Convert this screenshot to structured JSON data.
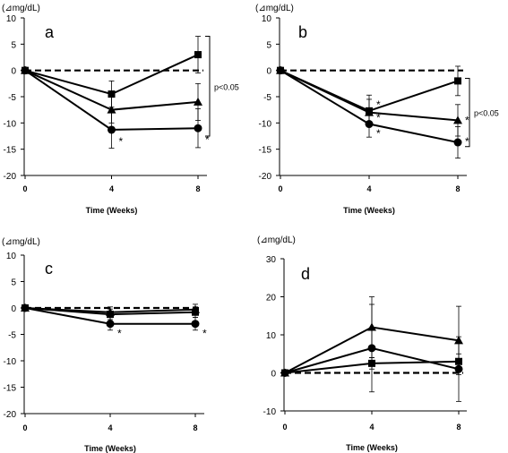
{
  "chart_data": [
    {
      "type": "line",
      "panel_label": "a",
      "y_unit": "(⊿mg/dL)",
      "xlabel": "Time (Weeks)",
      "x": [
        0,
        4,
        8
      ],
      "ylim": [
        -20,
        10
      ],
      "yticks": [
        -20,
        -15,
        -10,
        -5,
        0,
        5,
        10
      ],
      "series": [
        {
          "marker": "square",
          "values": [
            0,
            -4.5,
            3.0
          ],
          "errors": [
            0,
            2.5,
            3.5
          ]
        },
        {
          "marker": "triangle",
          "values": [
            0,
            -7.5,
            -6.0
          ],
          "errors": [
            0,
            2.5,
            3.5
          ]
        },
        {
          "marker": "circle",
          "values": [
            0,
            -11.3,
            -11.0
          ],
          "errors": [
            0,
            3.5,
            3.7
          ]
        }
      ],
      "baseline": 0,
      "annotations": [
        {
          "text": "*",
          "x": 4,
          "y": -13.5
        },
        {
          "text": "*",
          "x": 8,
          "y": -13.2
        }
      ],
      "bracket": {
        "text": "p<0.05",
        "from": 6.5,
        "to": -12.5
      }
    },
    {
      "type": "line",
      "panel_label": "b",
      "y_unit": "(⊿mg/dL)",
      "xlabel": "Time (Weeks)",
      "x": [
        0,
        4,
        8
      ],
      "ylim": [
        -20,
        10
      ],
      "yticks": [
        -20,
        -15,
        -10,
        -5,
        0,
        5,
        10
      ],
      "series": [
        {
          "marker": "square",
          "values": [
            0,
            -7.7,
            -2.0
          ],
          "errors": [
            0,
            3.0,
            2.8
          ]
        },
        {
          "marker": "triangle",
          "values": [
            0,
            -8.0,
            -9.5
          ],
          "errors": [
            0,
            2.5,
            3.0
          ]
        },
        {
          "marker": "circle",
          "values": [
            0,
            -10.2,
            -13.7
          ],
          "errors": [
            0,
            2.5,
            3.0
          ]
        }
      ],
      "baseline": 0,
      "annotations": [
        {
          "text": "*",
          "x": 4,
          "y": -6.5
        },
        {
          "text": "*",
          "x": 4,
          "y": -9.0
        },
        {
          "text": "*",
          "x": 4,
          "y": -12.0
        },
        {
          "text": "*",
          "x": 8,
          "y": -9.5
        },
        {
          "text": "*",
          "x": 8,
          "y": -13.5
        }
      ],
      "bracket": {
        "text": "p<0.05",
        "from": -1.5,
        "to": -14.5
      }
    },
    {
      "type": "line",
      "panel_label": "c",
      "y_unit": "(⊿mg/dL)",
      "xlabel": "Time (Weeks)",
      "x": [
        0,
        4,
        8
      ],
      "ylim": [
        -20,
        10
      ],
      "yticks": [
        -20,
        -15,
        -10,
        -5,
        0,
        5,
        10
      ],
      "series": [
        {
          "marker": "square",
          "values": [
            0,
            -1.2,
            -0.8
          ],
          "errors": [
            0,
            1.0,
            1.0
          ]
        },
        {
          "marker": "triangle",
          "values": [
            0,
            -0.8,
            -0.3
          ],
          "errors": [
            0,
            1.0,
            1.0
          ]
        },
        {
          "marker": "circle",
          "values": [
            0,
            -3.0,
            -3.0
          ],
          "errors": [
            0,
            1.2,
            1.2
          ]
        }
      ],
      "baseline": 0,
      "annotations": [
        {
          "text": "*",
          "x": 4,
          "y": -4.8
        },
        {
          "text": "*",
          "x": 8,
          "y": -4.8
        }
      ]
    },
    {
      "type": "line",
      "panel_label": "d",
      "y_unit": "(⊿mg/dL)",
      "xlabel": "Time (Weeks)",
      "x": [
        0,
        4,
        8
      ],
      "ylim": [
        -10,
        30
      ],
      "yticks": [
        -10,
        0,
        10,
        20,
        30
      ],
      "series": [
        {
          "marker": "triangle",
          "values": [
            0,
            12.0,
            8.5
          ],
          "errors": [
            0,
            8.0,
            9.0
          ]
        },
        {
          "marker": "circle",
          "values": [
            0,
            6.5,
            1.0
          ],
          "errors": [
            0,
            11.5,
            8.5
          ]
        },
        {
          "marker": "square",
          "values": [
            0,
            2.5,
            3.0
          ],
          "errors": [
            0,
            1.5,
            2.0
          ]
        }
      ],
      "baseline": 0,
      "annotations": []
    }
  ]
}
